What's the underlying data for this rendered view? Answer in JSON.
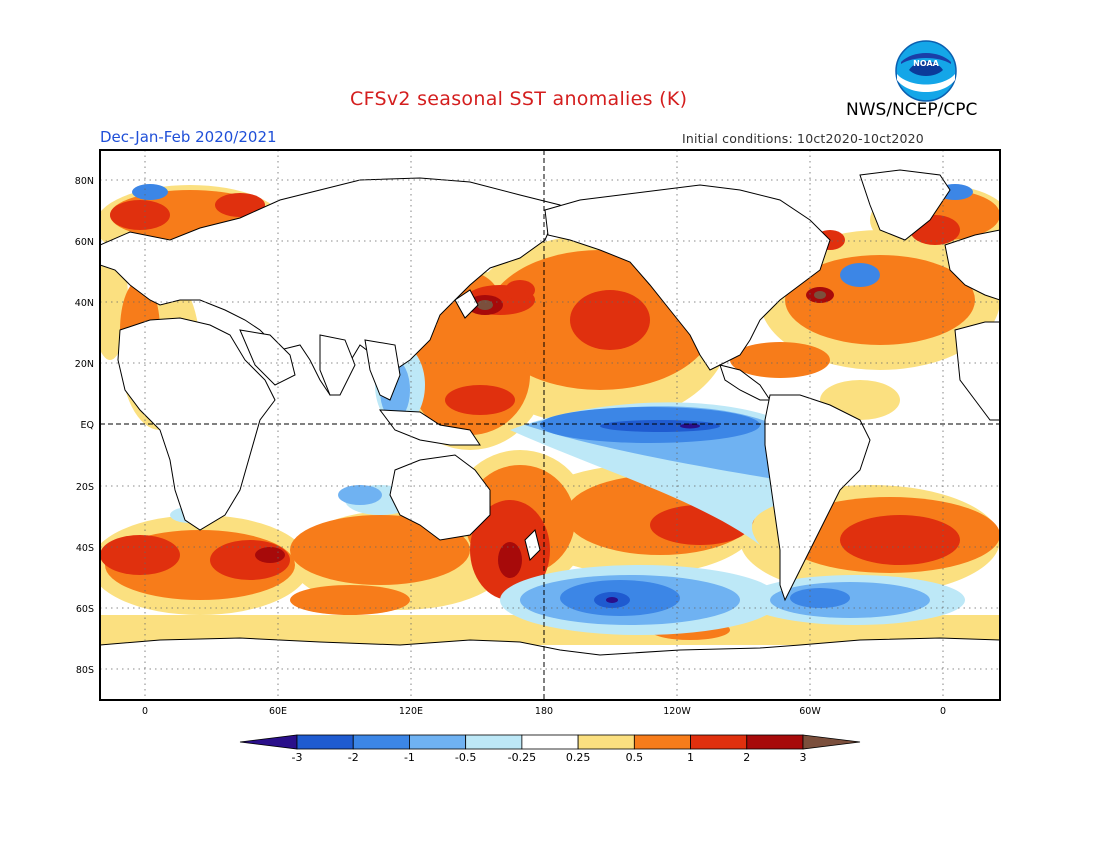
{
  "header": {
    "title": "CFSv2 seasonal SST anomalies (K)",
    "org": "NWS/NCEP/CPC",
    "period": "Dec-Jan-Feb 2020/2021",
    "initial_conditions": "Initial conditions: 10ct2020-10ct2020",
    "logo_text": "NOAA"
  },
  "map": {
    "projection": "cylindrical equidistant",
    "lon_range": [
      -20,
      380
    ],
    "lat_range": [
      -90,
      90
    ],
    "center_meridian_label": "180",
    "equator_label": "EQ",
    "lat_labels": [
      "80N",
      "60N",
      "40N",
      "20N",
      "EQ",
      "20S",
      "40S",
      "60S",
      "80S"
    ],
    "lon_labels": [
      "0",
      "60E",
      "120E",
      "180",
      "120W",
      "60W",
      "0"
    ]
  },
  "colorbar": {
    "levels": [
      "-3",
      "-2",
      "-1",
      "-0.5",
      "-0.25",
      "0.25",
      "0.5",
      "1",
      "2",
      "3"
    ],
    "colors": [
      "#2a0f8a",
      "#1f5bd0",
      "#3c86e6",
      "#6fb2f2",
      "#bde8f7",
      "#ffffff",
      "#fbe080",
      "#f77c1a",
      "#e0300e",
      "#a70a0a",
      "#7b4f3c"
    ]
  },
  "colors": {
    "title": "#d41e1e",
    "period": "#1f4fd8",
    "land": "#ffffff"
  }
}
